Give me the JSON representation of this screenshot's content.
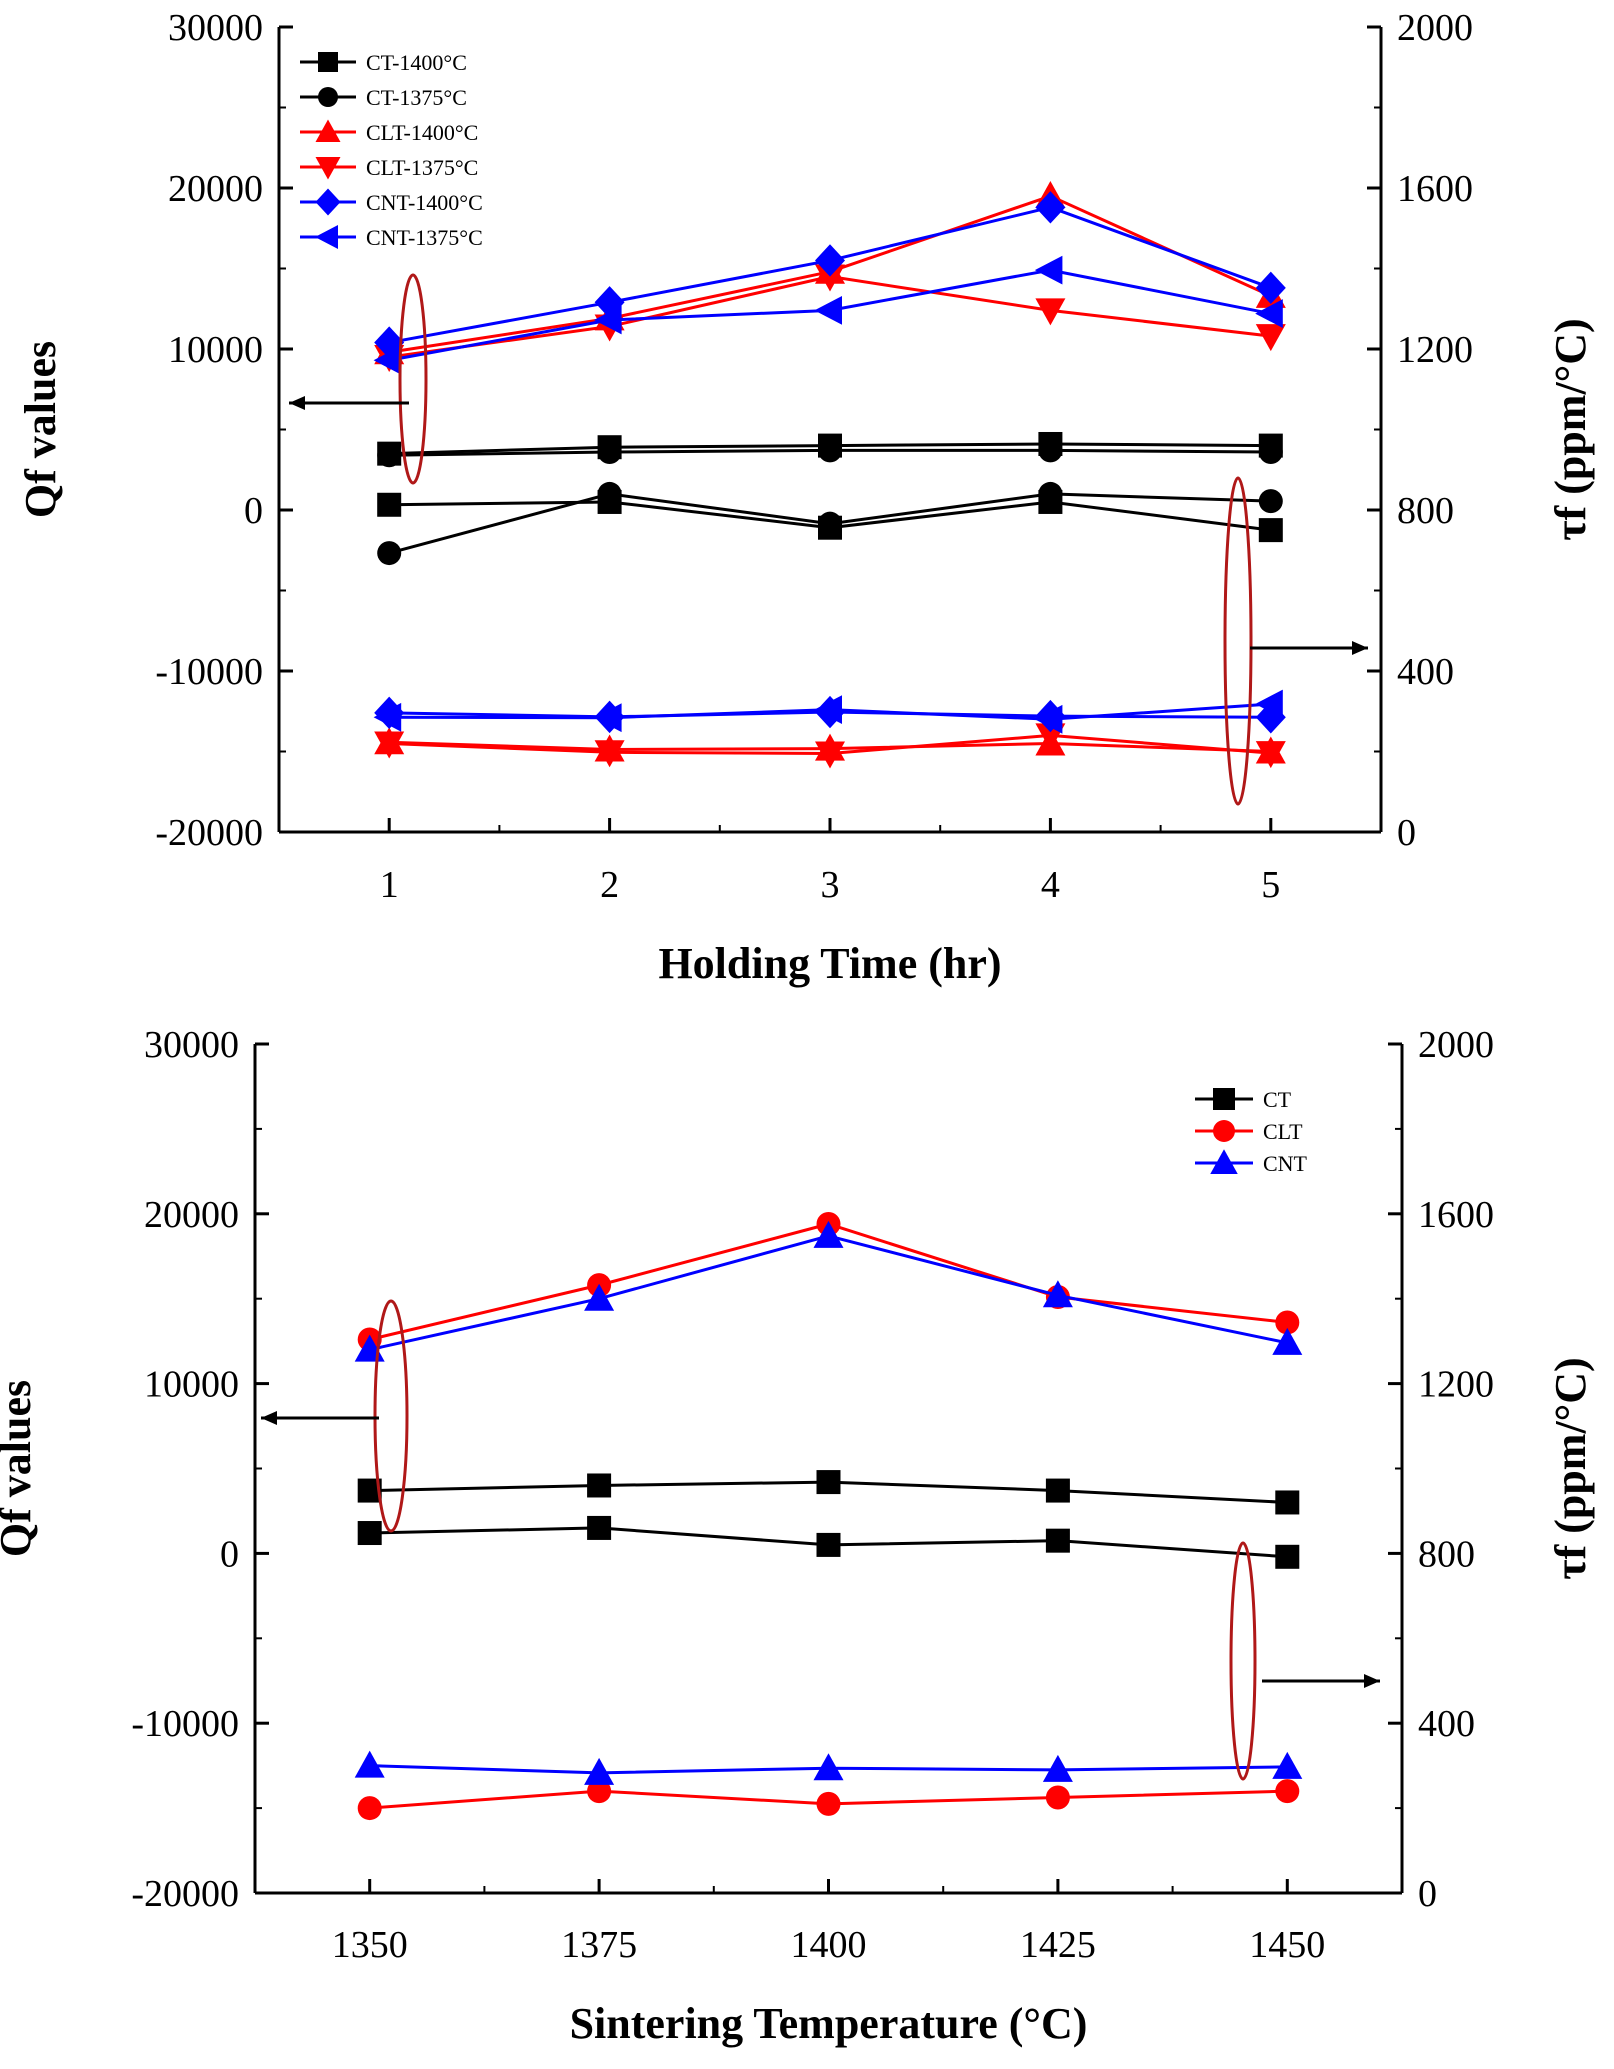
{
  "chart_data": [
    {
      "type": "line",
      "xlabel": "Holding Time (hr)",
      "ylabel": "Qf values",
      "y2label": "τf (ppm/°C)",
      "x_ticks": [
        "1",
        "2",
        "3",
        "4",
        "5"
      ],
      "xlim": [
        0.5,
        5.5
      ],
      "ylim": [
        -20000,
        30000
      ],
      "y_ticks": [
        "30000",
        "20000",
        "10000",
        "0",
        "-10000",
        "-20000"
      ],
      "y2lim": [
        0,
        2000
      ],
      "y2_ticks": [
        "2000",
        "1600",
        "1200",
        "800",
        "400",
        "0"
      ],
      "grid": false,
      "legend_position": "top-left",
      "x": [
        1,
        2,
        3,
        4,
        5
      ],
      "series": [
        {
          "name": "CT-1400°C",
          "color": "#000000",
          "marker": "square",
          "qf": [
            3500,
            3900,
            4000,
            4100,
            4000
          ],
          "tau_f": [
            813,
            820,
            756,
            820,
            750
          ]
        },
        {
          "name": "CT-1375°C",
          "color": "#000000",
          "marker": "circle",
          "qf": [
            3400,
            3600,
            3700,
            3700,
            3600
          ],
          "tau_f": [
            693,
            840,
            766,
            840,
            822
          ]
        },
        {
          "name": "CLT-1400°C",
          "color": "#ff0000",
          "marker": "triangle-up",
          "qf": [
            9800,
            11900,
            14800,
            19500,
            13300
          ],
          "tau_f": [
            223,
            205,
            207,
            220,
            200
          ]
        },
        {
          "name": "CLT-1375°C",
          "color": "#ff0000",
          "marker": "triangle-down",
          "qf": [
            9500,
            11400,
            14500,
            12400,
            10800
          ],
          "tau_f": [
            220,
            198,
            195,
            240,
            196
          ]
        },
        {
          "name": "CNT-1400°C",
          "color": "#0000ff",
          "marker": "diamond",
          "qf": [
            10400,
            12900,
            15500,
            18800,
            13800
          ],
          "tau_f": [
            296,
            286,
            298,
            288,
            285
          ]
        },
        {
          "name": "CNT-1375°C",
          "color": "#0000ff",
          "marker": "triangle-left",
          "qf": [
            9300,
            11800,
            12400,
            14900,
            12200
          ],
          "tau_f": [
            285,
            284,
            304,
            280,
            318
          ]
        }
      ]
    },
    {
      "type": "line",
      "xlabel": "Sintering Temperature (°C)",
      "ylabel": "Qf values",
      "y2label": "τf (ppm/°C)",
      "x_ticks": [
        "1350",
        "1375",
        "1400",
        "1425",
        "1450"
      ],
      "xlim": [
        1337.5,
        1462.5
      ],
      "ylim": [
        -20000,
        30000
      ],
      "y_ticks": [
        "30000",
        "20000",
        "10000",
        "0",
        "-10000",
        "-20000"
      ],
      "y2lim": [
        0,
        2000
      ],
      "y2_ticks": [
        "2000",
        "1600",
        "1200",
        "800",
        "400",
        "0"
      ],
      "grid": false,
      "legend_position": "top-right",
      "x": [
        1350,
        1375,
        1400,
        1425,
        1450
      ],
      "series": [
        {
          "name": "CT",
          "color": "#000000",
          "marker": "square",
          "qf": [
            3700,
            4000,
            4200,
            3700,
            3000
          ],
          "tau_f": [
            848,
            860,
            820,
            830,
            792
          ]
        },
        {
          "name": "CLT",
          "color": "#ff0000",
          "marker": "circle",
          "qf": [
            12600,
            15800,
            19400,
            15100,
            13600
          ],
          "tau_f": [
            200,
            240,
            210,
            225,
            240
          ]
        },
        {
          "name": "CNT",
          "color": "#0000ff",
          "marker": "triangle-up",
          "qf": [
            12000,
            15000,
            18700,
            15200,
            12400
          ],
          "tau_f": [
            300,
            283,
            294,
            290,
            297
          ]
        }
      ]
    }
  ]
}
